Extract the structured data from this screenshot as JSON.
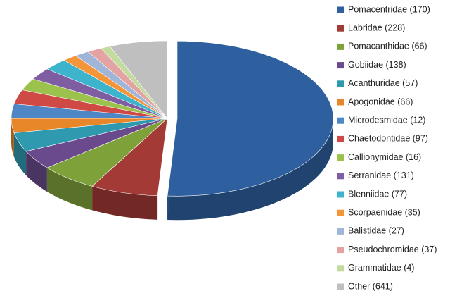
{
  "chart_data": {
    "type": "pie3d",
    "series": [
      {
        "name": "Pomacentridae (170)",
        "color": "#2e5f9e",
        "value": 51
      },
      {
        "name": "Labridae (228)",
        "color": "#a33a36",
        "value": 7
      },
      {
        "name": "Pomacanthidae (66)",
        "color": "#7fa13a",
        "value": 6
      },
      {
        "name": "Gobiidae (138)",
        "color": "#6a4a8c",
        "value": 4
      },
      {
        "name": "Acanthuridae (57)",
        "color": "#2f99b0",
        "value": 4
      },
      {
        "name": "Apogonidae (66)",
        "color": "#e8862a",
        "value": 3
      },
      {
        "name": "Microdesmidae (12)",
        "color": "#4f86c6",
        "value": 3
      },
      {
        "name": "Chaetodontidae (97)",
        "color": "#d04a45",
        "value": 3
      },
      {
        "name": "Callionymidae (16)",
        "color": "#9bc24c",
        "value": 2.5
      },
      {
        "name": "Serranidae (131)",
        "color": "#7f5da3",
        "value": 2.5
      },
      {
        "name": "Blenniidae (77)",
        "color": "#3eb4cc",
        "value": 2.5
      },
      {
        "name": "Scorpaenidae (35)",
        "color": "#f5953a",
        "value": 1.5
      },
      {
        "name": "Balistidae (27)",
        "color": "#9fb6d8",
        "value": 1.5
      },
      {
        "name": "Pseudochromidae (37)",
        "color": "#e3a3a2",
        "value": 1.5
      },
      {
        "name": "Grammatidae (4)",
        "color": "#c4dba0",
        "value": 1
      },
      {
        "name": "Other (641)",
        "color": "#bfbfbf",
        "value": 6
      }
    ],
    "legend": "right"
  }
}
